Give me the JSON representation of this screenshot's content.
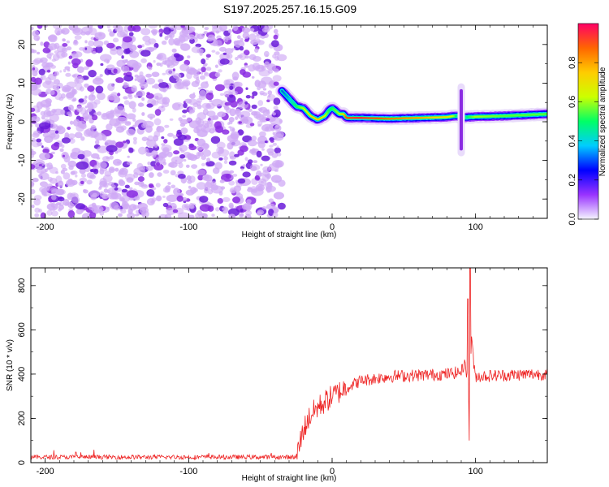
{
  "title": "S197.2025.257.16.15.G09",
  "chart_data": [
    {
      "type": "heatmap",
      "name": "spectrogram",
      "xlabel": "Height of straight line (km)",
      "ylabel": "Frequency (Hz)",
      "xlim": [
        -210,
        150
      ],
      "ylim": [
        -25,
        25
      ],
      "xticks": [
        -200,
        -100,
        0,
        100
      ],
      "yticks": [
        -20,
        -10,
        0,
        10,
        20
      ],
      "noise_region_x": [
        -210,
        -35
      ],
      "noise_level": 0.15,
      "signal_track": {
        "x": [
          -35,
          -30,
          -25,
          -20,
          -15,
          -10,
          -5,
          -2,
          0,
          2,
          5,
          8,
          10,
          20,
          40,
          60,
          80,
          85,
          88,
          90,
          95,
          100,
          120,
          150
        ],
        "y": [
          8,
          6,
          4,
          3.5,
          1.5,
          0.5,
          1.5,
          3,
          3.5,
          3,
          2,
          2,
          1,
          1,
          0.8,
          1,
          1.2,
          1.5,
          1.5,
          1,
          1.2,
          1.3,
          1.5,
          2
        ],
        "amplitude": [
          0.3,
          0.35,
          0.5,
          0.6,
          0.7,
          0.75,
          0.65,
          0.5,
          0.5,
          0.55,
          0.6,
          0.7,
          0.9,
          0.95,
          0.85,
          0.8,
          0.7,
          0.6,
          0.4,
          0.3,
          0.5,
          0.6,
          0.55,
          0.55
        ]
      },
      "colorbar": {
        "label": "Normalized spectral amplitude",
        "range": [
          0,
          1
        ],
        "ticks": [
          0.0,
          0.2,
          0.4,
          0.6,
          0.8
        ],
        "tick_labels": [
          "0.0",
          "0.2",
          "0.4",
          "0.6",
          "0.8"
        ],
        "colors": [
          "#f5f5ff",
          "#9933ff",
          "#0000ff",
          "#00ccff",
          "#00ff66",
          "#ccff00",
          "#ffcc00",
          "#ff6600",
          "#ff0066"
        ]
      }
    },
    {
      "type": "line",
      "name": "snr",
      "xlabel": "Height of straight line (km)",
      "ylabel": "SNR (10 * v/v)",
      "xlim": [
        -210,
        150
      ],
      "ylim": [
        0,
        880
      ],
      "xticks": [
        -200,
        -100,
        0,
        100
      ],
      "yticks": [
        0,
        200,
        400,
        600,
        800
      ],
      "color": "#ee2222",
      "series_envelope": {
        "x": [
          -210,
          -150,
          -100,
          -50,
          -25,
          -20,
          -15,
          -10,
          0,
          10,
          20,
          40,
          60,
          80,
          90,
          93,
          95,
          96,
          97,
          99,
          100,
          120,
          140,
          150
        ],
        "y": [
          25,
          25,
          25,
          25,
          25,
          150,
          215,
          250,
          300,
          340,
          370,
          390,
          395,
          400,
          410,
          460,
          300,
          150,
          600,
          420,
          390,
          395,
          400,
          400
        ]
      }
    }
  ]
}
